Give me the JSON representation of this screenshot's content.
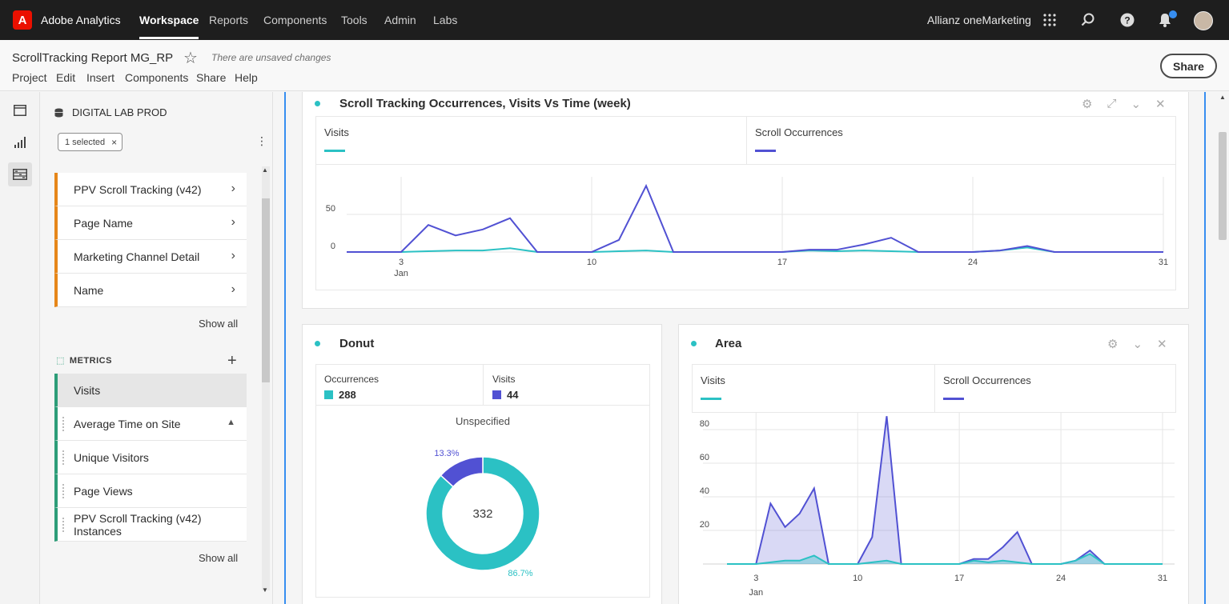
{
  "app": {
    "name": "Adobe Analytics",
    "logo_letter": "A"
  },
  "topnav": [
    "Workspace",
    "Reports",
    "Components",
    "Tools",
    "Admin",
    "Labs"
  ],
  "org": "Allianz oneMarketing",
  "top_icons": [
    "apps-grid-icon",
    "search-icon",
    "help-icon",
    "bell-icon",
    "avatar"
  ],
  "project": {
    "title": "ScrollTracking Report MG_RP",
    "unsaved": "There are unsaved changes",
    "menu": [
      "Project",
      "Edit",
      "Insert",
      "Components",
      "Share",
      "Help"
    ],
    "share": "Share"
  },
  "panel": {
    "datasource": "DIGITAL LAB PROD",
    "chip": "1 selected",
    "dimensions": [
      "PPV Scroll Tracking (v42)",
      "Page Name",
      "Marketing Channel Detail",
      "Name"
    ],
    "show_all_1": "Show all",
    "metrics_header": "METRICS",
    "metrics": [
      "Visits",
      "Average Time on Site",
      "Unique Visitors",
      "Page Views",
      "PPV Scroll Tracking (v42) Instances"
    ],
    "show_all_2": "Show all"
  },
  "colors": {
    "teal": "#2bc1c4",
    "indigo": "#5151d3",
    "dimension": "#e68619",
    "metric": "#2d9d78",
    "accent": "#378ef0"
  },
  "viz1": {
    "title": "Scroll Tracking Occurrences, Visits Vs Time (week)",
    "legend": [
      "Visits",
      "Scroll Occurrences"
    ]
  },
  "viz2": {
    "title": "Donut",
    "legend": [
      {
        "label": "Occurrences",
        "value": "288"
      },
      {
        "label": "Visits",
        "value": "44"
      }
    ],
    "subtitle": "Unspecified",
    "center": "332",
    "pct_small": "13.3%",
    "pct_large": "86.7%"
  },
  "viz3": {
    "title": "Area",
    "legend": [
      "Visits",
      "Scroll Occurrences"
    ]
  },
  "chart_data": [
    {
      "type": "line",
      "title": "Scroll Tracking Occurrences, Visits Vs Time (week)",
      "x": [
        1,
        2,
        3,
        4,
        5,
        6,
        7,
        8,
        9,
        10,
        11,
        12,
        13,
        14,
        15,
        16,
        17,
        18,
        19,
        20,
        21,
        22,
        23,
        24,
        25,
        26,
        27,
        28,
        29,
        30,
        31
      ],
      "x_ticks": [
        "3",
        "10",
        "17",
        "24",
        "31"
      ],
      "x_sublabel": "Jan",
      "y_ticks": [
        "0",
        "50"
      ],
      "ylim": [
        0,
        100
      ],
      "series": [
        {
          "name": "Visits",
          "values": [
            0,
            0,
            0,
            1,
            2,
            2,
            5,
            0,
            0,
            0,
            1,
            2,
            0,
            0,
            0,
            0,
            0,
            2,
            1,
            2,
            1,
            0,
            0,
            0,
            2,
            6,
            0,
            0,
            0,
            0,
            0
          ]
        },
        {
          "name": "Scroll Occurrences",
          "values": [
            0,
            0,
            0,
            36,
            22,
            30,
            45,
            0,
            0,
            0,
            16,
            88,
            0,
            0,
            0,
            0,
            0,
            3,
            3,
            10,
            19,
            0,
            0,
            0,
            2,
            8,
            0,
            0,
            0,
            0,
            0
          ]
        }
      ]
    },
    {
      "type": "pie",
      "title": "Donut",
      "center_total": 332,
      "slices": [
        {
          "name": "Occurrences",
          "value": 288,
          "pct": 86.7
        },
        {
          "name": "Visits",
          "value": 44,
          "pct": 13.3
        }
      ]
    },
    {
      "type": "area",
      "title": "Area",
      "x": [
        1,
        2,
        3,
        4,
        5,
        6,
        7,
        8,
        9,
        10,
        11,
        12,
        13,
        14,
        15,
        16,
        17,
        18,
        19,
        20,
        21,
        22,
        23,
        24,
        25,
        26,
        27,
        28,
        29,
        30,
        31
      ],
      "x_ticks": [
        "3",
        "10",
        "17",
        "24",
        "31"
      ],
      "x_sublabel": "Jan",
      "y_ticks": [
        "20",
        "40",
        "60",
        "80"
      ],
      "ylim": [
        0,
        90
      ],
      "series": [
        {
          "name": "Visits",
          "values": [
            0,
            0,
            0,
            1,
            2,
            2,
            5,
            0,
            0,
            0,
            1,
            2,
            0,
            0,
            0,
            0,
            0,
            2,
            1,
            2,
            1,
            0,
            0,
            0,
            2,
            6,
            0,
            0,
            0,
            0,
            0
          ]
        },
        {
          "name": "Scroll Occurrences",
          "values": [
            0,
            0,
            0,
            36,
            22,
            30,
            45,
            0,
            0,
            0,
            16,
            88,
            0,
            0,
            0,
            0,
            0,
            3,
            3,
            10,
            19,
            0,
            0,
            0,
            2,
            8,
            0,
            0,
            0,
            0,
            0
          ]
        }
      ]
    }
  ]
}
